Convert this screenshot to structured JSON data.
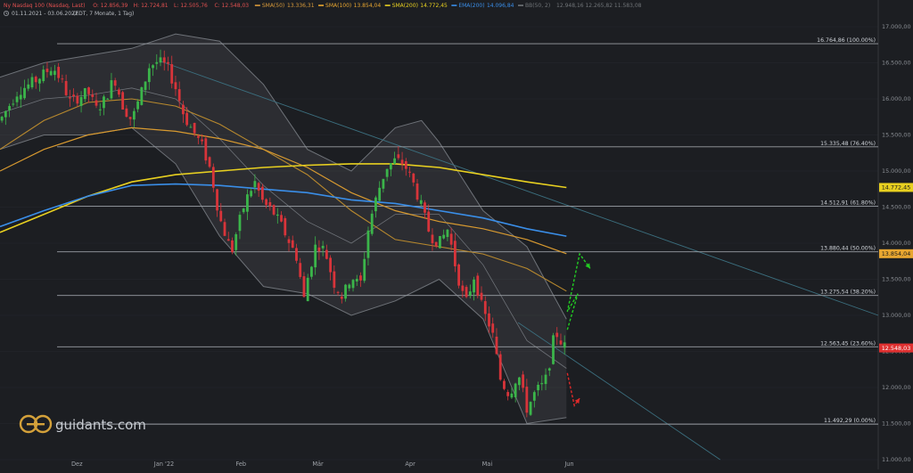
{
  "header": {
    "line1": [
      {
        "text": "Nasdaq 100 (Nasdaq, Last)",
        "color": "#e05050"
      },
      {
        "text": "O: 12.856,39",
        "color": "#e05050"
      },
      {
        "text": "H: 12.724,81",
        "color": "#e05050"
      },
      {
        "text": "L: 12.505,76",
        "color": "#e05050"
      },
      {
        "text": "C: 12.548,03",
        "color": "#e05050"
      },
      {
        "text": "SMA(50)",
        "color": "#d89a3a",
        "swatch": true
      },
      {
        "text": "13.336,31",
        "color": "#d89a3a"
      },
      {
        "text": "SMA(100)",
        "color": "#e8a630",
        "swatch": true
      },
      {
        "text": "13.854,04",
        "color": "#e8a630"
      },
      {
        "text": "SMA(200)",
        "color": "#e8d020",
        "swatch": true
      },
      {
        "text": "14.772,45",
        "color": "#e8d020"
      },
      {
        "text": "EMA(200)",
        "color": "#3a8ee8",
        "swatch": true
      },
      {
        "text": "14.096,84",
        "color": "#3a8ee8"
      },
      {
        "text": "BB(50, 2)",
        "color": "#707478",
        "swatch": true
      },
      {
        "text": "12.948,16   12.265,82   11.583,08",
        "color": "#707478"
      }
    ],
    "line2": "01.11.2021 - 03.06.2022",
    "line2b": "(EDT, 7 Monate, 1 Tag)",
    "clock_icon": "clock-icon"
  },
  "brand": {
    "name": "guidants.com",
    "logo": "guidants-logo",
    "color": "#d4a13a"
  },
  "chart_data": {
    "type": "candlestick",
    "instrument": "Nasdaq 100 (Nasdaq, Last)",
    "period": "01.11.2021 - 03.06.2022",
    "interval": "1 Tag",
    "last": 12548.03,
    "ohlc": {
      "open": 12856.39,
      "high": 12724.81,
      "low": 12505.76,
      "close": 12548.03
    },
    "y_axis": {
      "min": 11000,
      "max": 17000,
      "ticks": [
        {
          "v": 17000,
          "label": "17.000,00"
        },
        {
          "v": 16500,
          "label": "16.500,00"
        },
        {
          "v": 16000,
          "label": "16.000,00"
        },
        {
          "v": 15500,
          "label": "15.500,00"
        },
        {
          "v": 15000,
          "label": "15.000,00"
        },
        {
          "v": 14500,
          "label": "14.500,00"
        },
        {
          "v": 14000,
          "label": "14.000,00"
        },
        {
          "v": 13500,
          "label": "13.500,00"
        },
        {
          "v": 13000,
          "label": "13.000,00"
        },
        {
          "v": 12500,
          "label": "12.500,00"
        },
        {
          "v": 12000,
          "label": "12.000,00"
        },
        {
          "v": 11500,
          "label": "11.500,00"
        },
        {
          "v": 11000,
          "label": "11.000,00"
        }
      ]
    },
    "x_axis": {
      "labels": [
        {
          "label": "Dez",
          "t": 0.0876
        },
        {
          "label": "Jan '22",
          "t": 0.1868
        },
        {
          "label": "Feb",
          "t": 0.2744
        },
        {
          "label": "Mär",
          "t": 0.362
        },
        {
          "label": "Apr",
          "t": 0.4671
        },
        {
          "label": "Mai",
          "t": 0.5547
        },
        {
          "label": "Jun",
          "t": 0.6482
        }
      ]
    },
    "fib_levels": [
      {
        "value": 16764.86,
        "label": "16.764,86 (100.00%)"
      },
      {
        "value": 15335.48,
        "label": "15.335,48 (76.40%)"
      },
      {
        "value": 14512.91,
        "label": "14.512,91 (61.80%)"
      },
      {
        "value": 13880.44,
        "label": "13.880,44 (50.00%)"
      },
      {
        "value": 13275.54,
        "label": "13.275,54 (38.20%)"
      },
      {
        "value": 12563.45,
        "label": "12.563,45 (23.60%)"
      },
      {
        "value": 11492.29,
        "label": "11.492,29 (0.00%)"
      }
    ],
    "price_labels": [
      {
        "value": 14772.45,
        "text": "14.772,45",
        "color": "#e8d020",
        "text_color": "#1a1a1a"
      },
      {
        "value": 13854.04,
        "text": "13.854,04",
        "color": "#e8a630",
        "text_color": "#1a1a1a"
      },
      {
        "value": 12548.03,
        "text": "12.548,03",
        "color": "#e03030",
        "text_color": "#ffffff"
      }
    ],
    "anchors": [
      [
        0.0,
        15700
      ],
      [
        0.02,
        16100
      ],
      [
        0.04,
        16250
      ],
      [
        0.06,
        16450
      ],
      [
        0.07,
        16250
      ],
      [
        0.08,
        15950
      ],
      [
        0.1,
        16100
      ],
      [
        0.11,
        15850
      ],
      [
        0.12,
        16000
      ],
      [
        0.13,
        16300
      ],
      [
        0.14,
        15900
      ],
      [
        0.15,
        15700
      ],
      [
        0.16,
        16050
      ],
      [
        0.17,
        16450
      ],
      [
        0.18,
        16520
      ],
      [
        0.19,
        16450
      ],
      [
        0.2,
        16150
      ],
      [
        0.21,
        15750
      ],
      [
        0.22,
        15550
      ],
      [
        0.23,
        15350
      ],
      [
        0.24,
        15000
      ],
      [
        0.25,
        14350
      ],
      [
        0.26,
        14000
      ],
      [
        0.265,
        13900
      ],
      [
        0.27,
        14200
      ],
      [
        0.28,
        14600
      ],
      [
        0.29,
        14850
      ],
      [
        0.3,
        14550
      ],
      [
        0.31,
        14450
      ],
      [
        0.32,
        14250
      ],
      [
        0.33,
        14000
      ],
      [
        0.34,
        13750
      ],
      [
        0.345,
        13150
      ],
      [
        0.35,
        13500
      ],
      [
        0.36,
        14000
      ],
      [
        0.37,
        13900
      ],
      [
        0.38,
        13450
      ],
      [
        0.39,
        13250
      ],
      [
        0.4,
        13550
      ],
      [
        0.41,
        13400
      ],
      [
        0.42,
        14250
      ],
      [
        0.43,
        14700
      ],
      [
        0.44,
        15050
      ],
      [
        0.45,
        15150
      ],
      [
        0.46,
        15100
      ],
      [
        0.47,
        14850
      ],
      [
        0.48,
        14500
      ],
      [
        0.49,
        14100
      ],
      [
        0.5,
        14000
      ],
      [
        0.51,
        14200
      ],
      [
        0.52,
        13600
      ],
      [
        0.53,
        13150
      ],
      [
        0.54,
        13550
      ],
      [
        0.55,
        13050
      ],
      [
        0.56,
        12800
      ],
      [
        0.57,
        12100
      ],
      [
        0.58,
        11900
      ],
      [
        0.59,
        12200
      ],
      [
        0.6,
        11700
      ],
      [
        0.61,
        11950
      ],
      [
        0.62,
        12050
      ],
      [
        0.625,
        12300
      ],
      [
        0.63,
        12650
      ],
      [
        0.635,
        12750
      ],
      [
        0.64,
        12600
      ],
      [
        0.645,
        12548
      ]
    ],
    "sma50": [
      [
        0.0,
        15300
      ],
      [
        0.05,
        15700
      ],
      [
        0.1,
        15950
      ],
      [
        0.15,
        16000
      ],
      [
        0.2,
        15900
      ],
      [
        0.25,
        15650
      ],
      [
        0.3,
        15300
      ],
      [
        0.35,
        14950
      ],
      [
        0.4,
        14450
      ],
      [
        0.45,
        14050
      ],
      [
        0.5,
        13950
      ],
      [
        0.55,
        13850
      ],
      [
        0.6,
        13650
      ],
      [
        0.645,
        13336
      ]
    ],
    "sma100": [
      [
        0.0,
        15000
      ],
      [
        0.05,
        15300
      ],
      [
        0.1,
        15500
      ],
      [
        0.15,
        15600
      ],
      [
        0.2,
        15550
      ],
      [
        0.25,
        15450
      ],
      [
        0.3,
        15300
      ],
      [
        0.35,
        15050
      ],
      [
        0.4,
        14700
      ],
      [
        0.45,
        14450
      ],
      [
        0.5,
        14300
      ],
      [
        0.55,
        14200
      ],
      [
        0.6,
        14050
      ],
      [
        0.645,
        13854
      ]
    ],
    "sma200": [
      [
        0.0,
        14150
      ],
      [
        0.05,
        14400
      ],
      [
        0.1,
        14650
      ],
      [
        0.15,
        14850
      ],
      [
        0.2,
        14950
      ],
      [
        0.25,
        15000
      ],
      [
        0.3,
        15050
      ],
      [
        0.35,
        15080
      ],
      [
        0.4,
        15100
      ],
      [
        0.45,
        15100
      ],
      [
        0.5,
        15050
      ],
      [
        0.55,
        14950
      ],
      [
        0.6,
        14850
      ],
      [
        0.645,
        14772
      ]
    ],
    "ema200": [
      [
        0.0,
        14230
      ],
      [
        0.05,
        14450
      ],
      [
        0.1,
        14650
      ],
      [
        0.15,
        14800
      ],
      [
        0.2,
        14820
      ],
      [
        0.25,
        14800
      ],
      [
        0.3,
        14750
      ],
      [
        0.35,
        14700
      ],
      [
        0.4,
        14600
      ],
      [
        0.45,
        14550
      ],
      [
        0.5,
        14450
      ],
      [
        0.55,
        14350
      ],
      [
        0.6,
        14200
      ],
      [
        0.645,
        14097
      ]
    ],
    "bb_upper": [
      [
        0.0,
        16300
      ],
      [
        0.05,
        16500
      ],
      [
        0.1,
        16600
      ],
      [
        0.15,
        16700
      ],
      [
        0.2,
        16900
      ],
      [
        0.25,
        16800
      ],
      [
        0.3,
        16200
      ],
      [
        0.35,
        15300
      ],
      [
        0.4,
        15000
      ],
      [
        0.45,
        15600
      ],
      [
        0.48,
        15700
      ],
      [
        0.5,
        15400
      ],
      [
        0.55,
        14450
      ],
      [
        0.6,
        13950
      ],
      [
        0.645,
        12948
      ]
    ],
    "bb_mid": [
      [
        0.0,
        15800
      ],
      [
        0.05,
        16000
      ],
      [
        0.1,
        16050
      ],
      [
        0.15,
        16150
      ],
      [
        0.2,
        16000
      ],
      [
        0.25,
        15450
      ],
      [
        0.3,
        14800
      ],
      [
        0.35,
        14300
      ],
      [
        0.4,
        14000
      ],
      [
        0.45,
        14400
      ],
      [
        0.5,
        14400
      ],
      [
        0.55,
        13700
      ],
      [
        0.6,
        12650
      ],
      [
        0.645,
        12266
      ]
    ],
    "bb_lower": [
      [
        0.0,
        15300
      ],
      [
        0.05,
        15500
      ],
      [
        0.1,
        15500
      ],
      [
        0.15,
        15600
      ],
      [
        0.2,
        15100
      ],
      [
        0.25,
        14100
      ],
      [
        0.3,
        13400
      ],
      [
        0.35,
        13300
      ],
      [
        0.4,
        13000
      ],
      [
        0.45,
        13200
      ],
      [
        0.5,
        13500
      ],
      [
        0.55,
        12950
      ],
      [
        0.6,
        11500
      ],
      [
        0.645,
        11583
      ]
    ],
    "trendlines": [
      {
        "from": [
          0.183,
          16520
        ],
        "to": [
          1.0,
          13000
        ]
      },
      {
        "from": [
          0.59,
          12900
        ],
        "to": [
          0.82,
          11000
        ]
      }
    ],
    "projections": [
      {
        "path": [
          [
            0.646,
            12800
          ],
          [
            0.658,
            13300
          ],
          [
            0.646,
            13050
          ],
          [
            0.66,
            13850
          ],
          [
            0.672,
            13650
          ]
        ],
        "color": "#22cc22"
      },
      {
        "path": [
          [
            0.646,
            12200
          ],
          [
            0.654,
            11750
          ],
          [
            0.66,
            11850
          ]
        ],
        "color": "#dd2a2a"
      }
    ]
  }
}
